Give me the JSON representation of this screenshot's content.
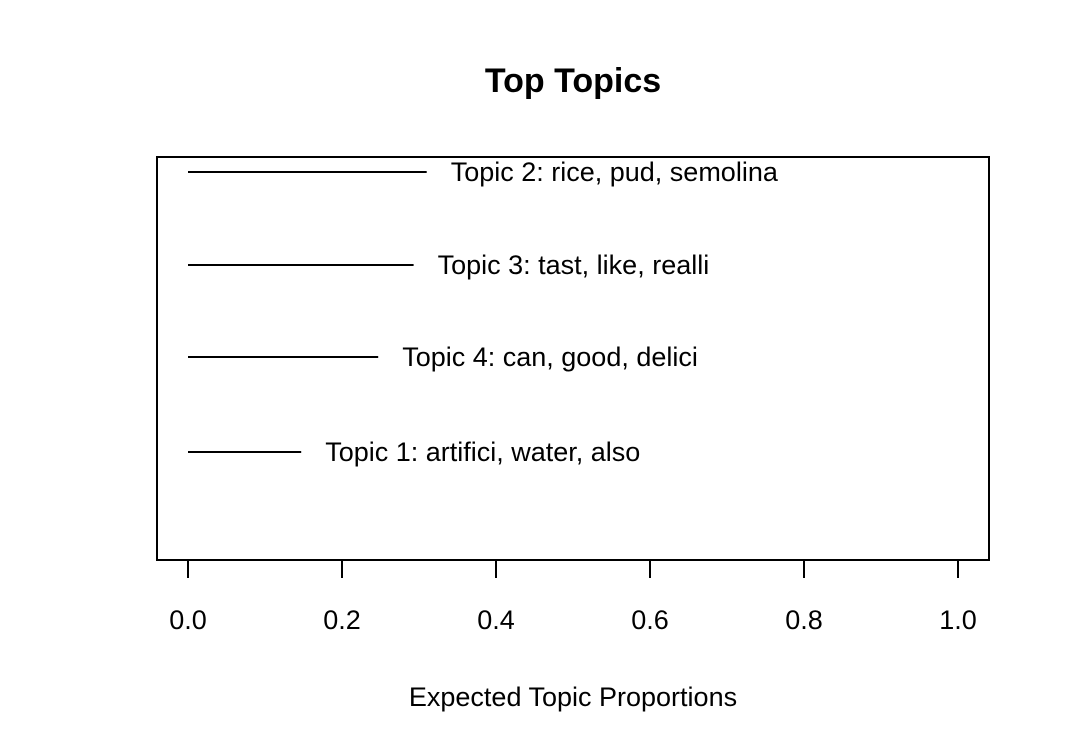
{
  "chart_data": {
    "type": "bar",
    "title": "Top Topics",
    "xlabel": "Expected Topic Proportions",
    "ylabel": "",
    "xlim": [
      0.0,
      1.0
    ],
    "x_ticks": [
      "0.0",
      "0.2",
      "0.4",
      "0.6",
      "0.8",
      "1.0"
    ],
    "grid": false,
    "categories": [
      "Topic 2: rice, pud, semolina",
      "Topic 3: tast, like, realli",
      "Topic 4: can, good, delici",
      "Topic 1: artifici, water, also"
    ],
    "values": [
      0.31,
      0.293,
      0.247,
      0.147
    ],
    "bar_color": "#000000"
  }
}
